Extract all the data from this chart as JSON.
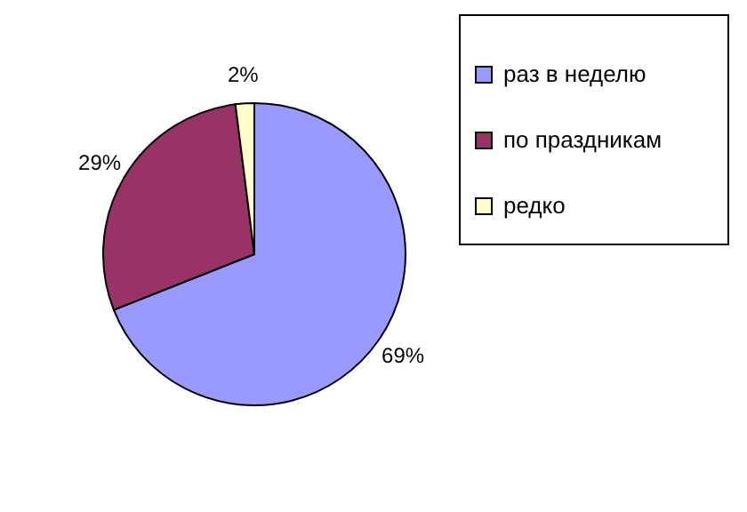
{
  "chart_data": {
    "type": "pie",
    "categories": [
      "раз в неделю",
      "по праздникам",
      "редко"
    ],
    "values": [
      69,
      29,
      2
    ],
    "colors": [
      "#9999ff",
      "#993366",
      "#ffffcc"
    ],
    "value_labels": [
      "69%",
      "29%",
      "2%"
    ],
    "legend": "right"
  }
}
